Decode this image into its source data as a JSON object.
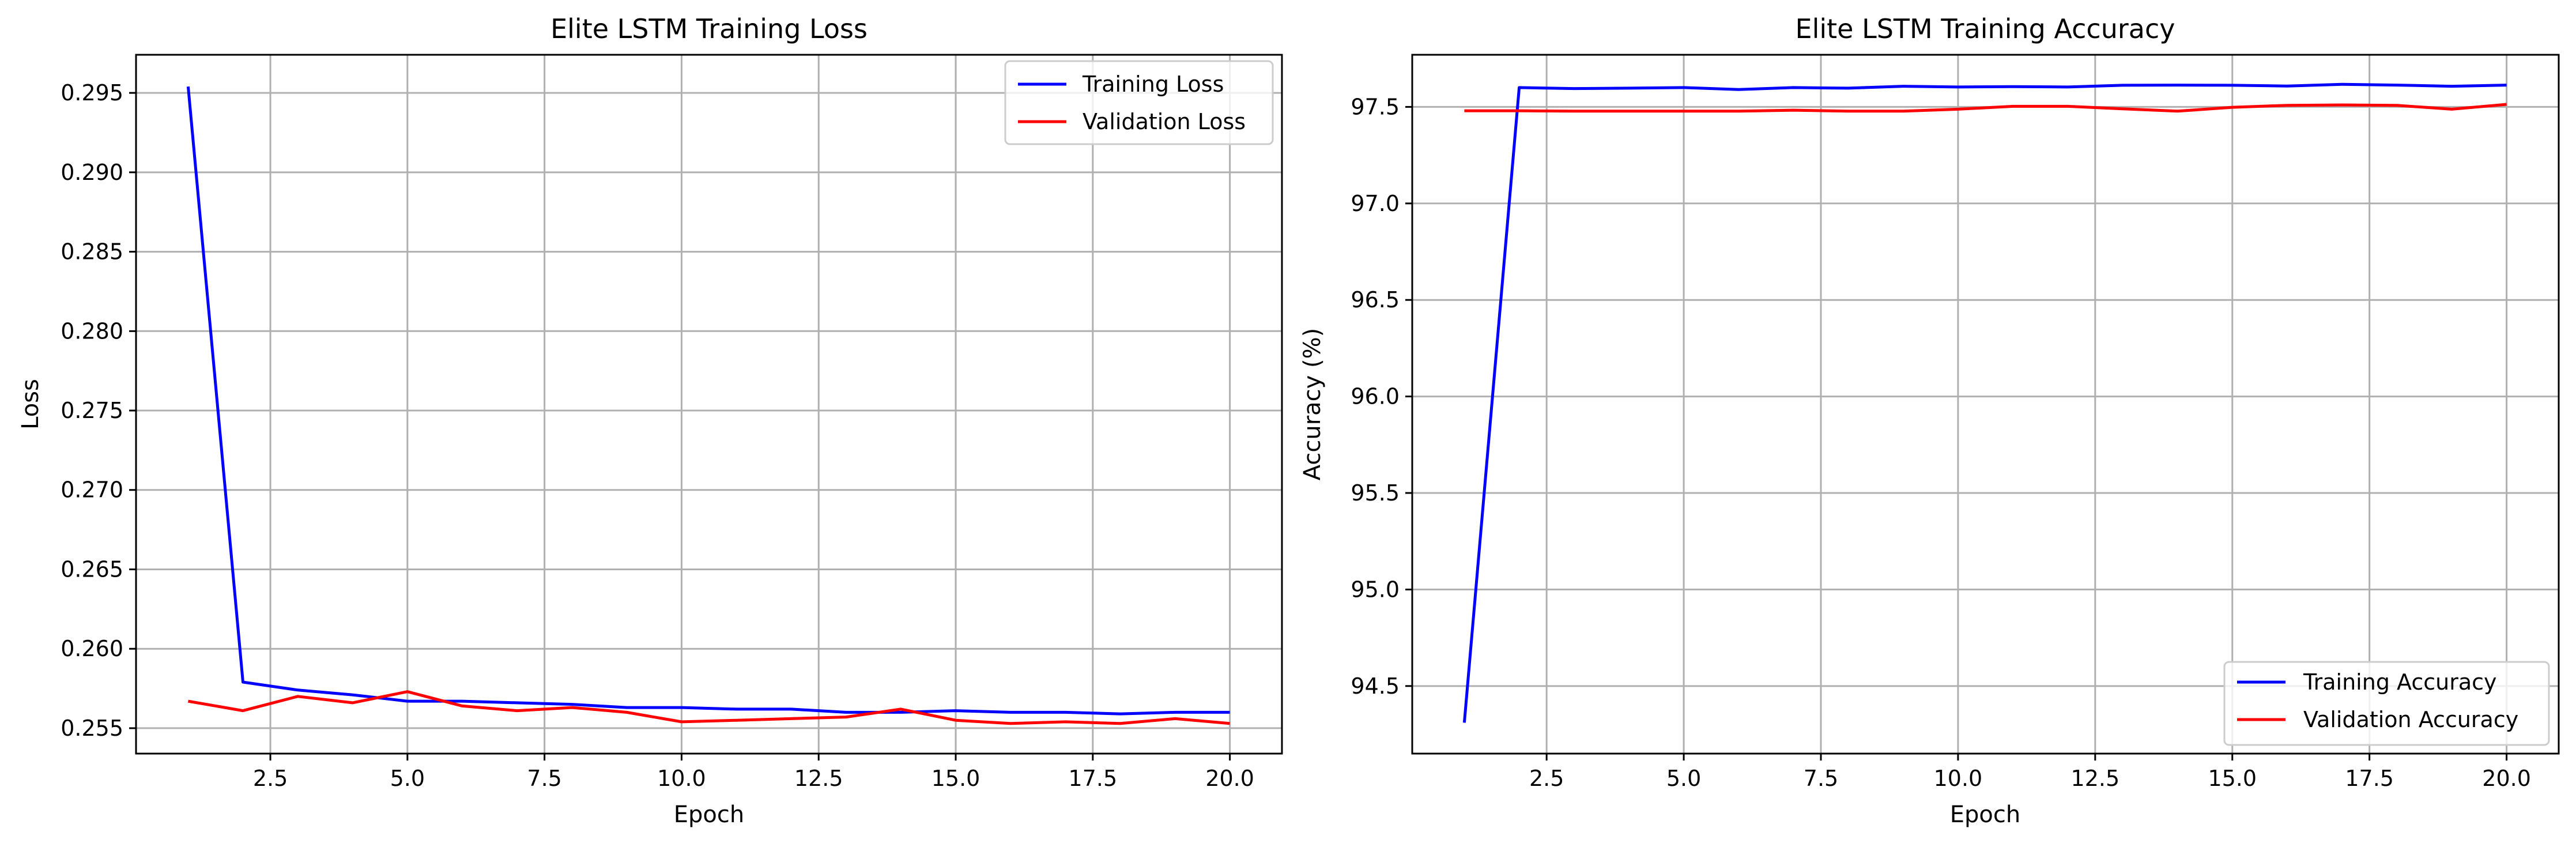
{
  "chart_data": [
    {
      "type": "line",
      "title": "Elite LSTM Training Loss",
      "xlabel": "Epoch",
      "ylabel": "Loss",
      "xlim": [
        0.05,
        20.95
      ],
      "ylim": [
        0.2534,
        0.2974
      ],
      "xticks": [
        2.5,
        5.0,
        7.5,
        10.0,
        12.5,
        15.0,
        17.5,
        20.0
      ],
      "xtick_labels": [
        "2.5",
        "5.0",
        "7.5",
        "10.0",
        "12.5",
        "15.0",
        "17.5",
        "20.0"
      ],
      "yticks": [
        0.255,
        0.26,
        0.265,
        0.27,
        0.275,
        0.28,
        0.285,
        0.29,
        0.295
      ],
      "ytick_labels": [
        "0.255",
        "0.260",
        "0.265",
        "0.270",
        "0.275",
        "0.280",
        "0.285",
        "0.290",
        "0.295"
      ],
      "grid": true,
      "legend_position": "upper-right",
      "x": [
        1,
        2,
        3,
        4,
        5,
        6,
        7,
        8,
        9,
        10,
        11,
        12,
        13,
        14,
        15,
        16,
        17,
        18,
        19,
        20
      ],
      "series": [
        {
          "name": "Training Loss",
          "color": "#0000ff",
          "values": [
            0.2954,
            0.2579,
            0.2574,
            0.2571,
            0.2567,
            0.2567,
            0.2566,
            0.2565,
            0.2563,
            0.2563,
            0.2562,
            0.2562,
            0.256,
            0.256,
            0.2561,
            0.256,
            0.256,
            0.2559,
            0.256,
            0.256
          ]
        },
        {
          "name": "Validation Loss",
          "color": "#ff0000",
          "values": [
            0.2567,
            0.2561,
            0.257,
            0.2566,
            0.2573,
            0.2564,
            0.2561,
            0.2563,
            0.256,
            0.2554,
            0.2555,
            0.2556,
            0.2557,
            0.2562,
            0.2555,
            0.2553,
            0.2554,
            0.2553,
            0.2556,
            0.2553
          ]
        }
      ]
    },
    {
      "type": "line",
      "title": "Elite LSTM Training Accuracy",
      "xlabel": "Epoch",
      "ylabel": "Accuracy (%)",
      "xlim": [
        0.05,
        20.95
      ],
      "ylim": [
        94.15,
        97.77
      ],
      "xticks": [
        2.5,
        5.0,
        7.5,
        10.0,
        12.5,
        15.0,
        17.5,
        20.0
      ],
      "xtick_labels": [
        "2.5",
        "5.0",
        "7.5",
        "10.0",
        "12.5",
        "15.0",
        "17.5",
        "20.0"
      ],
      "yticks": [
        94.5,
        95.0,
        95.5,
        96.0,
        96.5,
        97.0,
        97.5
      ],
      "ytick_labels": [
        "94.5",
        "95.0",
        "95.5",
        "96.0",
        "96.5",
        "97.0",
        "97.5"
      ],
      "grid": true,
      "legend_position": "lower-right",
      "x": [
        1,
        2,
        3,
        4,
        5,
        6,
        7,
        8,
        9,
        10,
        11,
        12,
        13,
        14,
        15,
        16,
        17,
        18,
        19,
        20
      ],
      "series": [
        {
          "name": "Training Accuracy",
          "color": "#0000ff",
          "values": [
            94.31,
            97.6,
            97.595,
            97.597,
            97.6,
            97.59,
            97.6,
            97.597,
            97.607,
            97.603,
            97.605,
            97.603,
            97.612,
            97.613,
            97.612,
            97.608,
            97.617,
            97.613,
            97.607,
            97.613
          ]
        },
        {
          "name": "Validation Accuracy",
          "color": "#ff0000",
          "values": [
            97.48,
            97.48,
            97.478,
            97.478,
            97.478,
            97.478,
            97.483,
            97.478,
            97.478,
            97.488,
            97.503,
            97.503,
            97.49,
            97.478,
            97.498,
            97.508,
            97.51,
            97.508,
            97.488,
            97.513
          ]
        }
      ]
    }
  ]
}
